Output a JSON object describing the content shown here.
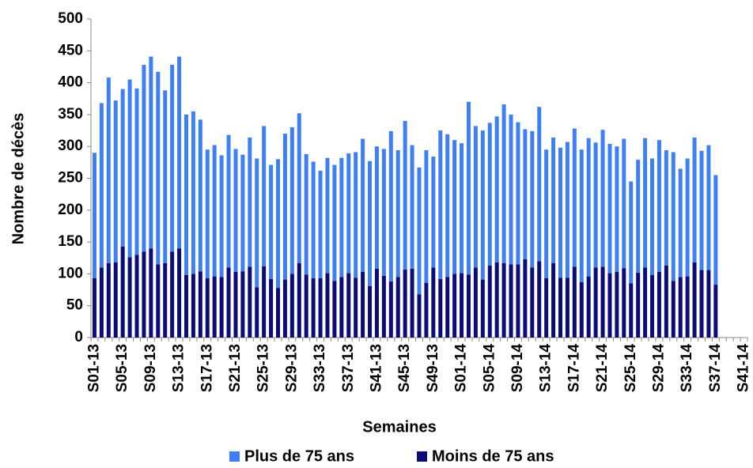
{
  "chart_data": {
    "type": "stacked-bar",
    "x_label": "Semaines",
    "y_label": "Nombre de décès",
    "categories": [
      "S01-13",
      null,
      null,
      null,
      "S05-13",
      null,
      null,
      null,
      "S09-13",
      null,
      null,
      null,
      "S13-13",
      null,
      null,
      null,
      "S17-13",
      null,
      null,
      null,
      "S21-13",
      null,
      null,
      null,
      "S25-13",
      null,
      null,
      null,
      "S29-13",
      null,
      null,
      null,
      "S33-13",
      null,
      null,
      null,
      "S37-13",
      null,
      null,
      null,
      "S41-13",
      null,
      null,
      null,
      "S45-13",
      null,
      null,
      null,
      "S49-13",
      null,
      null,
      null,
      "S01-14",
      null,
      null,
      null,
      "S05-14",
      null,
      null,
      null,
      "S09-14",
      null,
      null,
      null,
      "S13-14",
      null,
      null,
      null,
      "S17-14",
      null,
      null,
      null,
      "S21-14",
      null,
      null,
      null,
      "S25-14",
      null,
      null,
      null,
      "S29-14",
      null,
      null,
      null,
      "S33-14",
      null,
      null,
      null,
      "S37-14",
      null,
      null,
      null,
      "S41-14"
    ],
    "series": [
      {
        "name": "Plus de 75 ans",
        "color": "#3f7ff5",
        "values": [
          197,
          258,
          291,
          254,
          247,
          279,
          261,
          293,
          301,
          302,
          271,
          293,
          301,
          252,
          255,
          238,
          202,
          206,
          191,
          208,
          193,
          183,
          203,
          202,
          220,
          179,
          202,
          229,
          230,
          235,
          189,
          183,
          169,
          181,
          182,
          187,
          188,
          197,
          209,
          196,
          192,
          199,
          236,
          199,
          233,
          194,
          199,
          208,
          174,
          233,
          224,
          210,
          204,
          271,
          222,
          234,
          224,
          229,
          249,
          235,
          223,
          204,
          214,
          242,
          202,
          197,
          204,
          213,
          217,
          208,
          217,
          196,
          215,
          203,
          197,
          203,
          160,
          177,
          203,
          183,
          207,
          181,
          202,
          170,
          185,
          196,
          187,
          196,
          172,
          null,
          null,
          null,
          null
        ]
      },
      {
        "name": "Moins de 75 ans",
        "color": "#0c0c78",
        "values": [
          93,
          110,
          117,
          118,
          143,
          126,
          130,
          135,
          140,
          115,
          117,
          135,
          140,
          98,
          100,
          104,
          93,
          96,
          95,
          110,
          103,
          104,
          111,
          79,
          112,
          92,
          78,
          91,
          100,
          117,
          99,
          93,
          93,
          101,
          89,
          95,
          101,
          94,
          103,
          81,
          108,
          97,
          88,
          95,
          107,
          108,
          68,
          86,
          110,
          92,
          95,
          100,
          101,
          99,
          110,
          91,
          113,
          118,
          117,
          115,
          115,
          123,
          110,
          120,
          93,
          117,
          94,
          94,
          111,
          87,
          96,
          110,
          111,
          101,
          103,
          109,
          85,
          102,
          110,
          98,
          103,
          113,
          89,
          95,
          96,
          118,
          106,
          106,
          83,
          null,
          null,
          null,
          null
        ]
      }
    ],
    "ylim": [
      0,
      500
    ],
    "yticks": [
      0,
      50,
      100,
      150,
      200,
      250,
      300,
      350,
      400,
      450,
      500
    ],
    "legend": "bottom"
  }
}
